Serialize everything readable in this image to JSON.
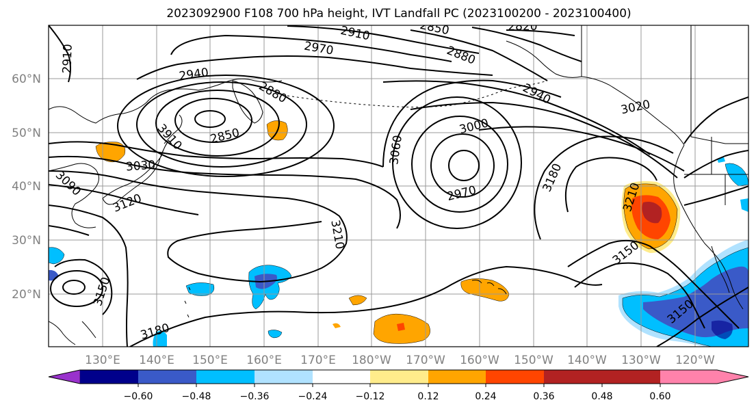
{
  "title": "2023092900 F108 700 hPa height, IVT Landfall PC (2023100200 - 2023100400)",
  "lat_labels": [
    "60°N",
    "50°N",
    "40°N",
    "30°N",
    "20°N"
  ],
  "lon_labels": [
    "130°E",
    "140°E",
    "150°E",
    "160°E",
    "170°E",
    "180°W",
    "170°W",
    "160°W",
    "150°W",
    "140°W",
    "130°W",
    "120°W"
  ],
  "colorbar": {
    "colors": [
      "#9932cc",
      "#00008b",
      "#3a5ac8",
      "#00bfff",
      "#b0e2ff",
      "#ffffff",
      "#ffec8b",
      "#ffa500",
      "#ff4500",
      "#b22222",
      "#ff82ab"
    ],
    "tick_labels": [
      "−0.60",
      "−0.48",
      "−0.36",
      "−0.24",
      "−0.12",
      "0.12",
      "0.24",
      "0.36",
      "0.48",
      "0.60"
    ]
  },
  "contour_labels": [
    "2910",
    "2910",
    "2850",
    "2820",
    "2970",
    "2880",
    "2940",
    "2880",
    "2940",
    "3000",
    "3020",
    "2850",
    "3910",
    "3030",
    "3060",
    "2970",
    "3180",
    "3210",
    "3090",
    "3120",
    "3210",
    "3150",
    "3150",
    "3180",
    "3150"
  ]
}
